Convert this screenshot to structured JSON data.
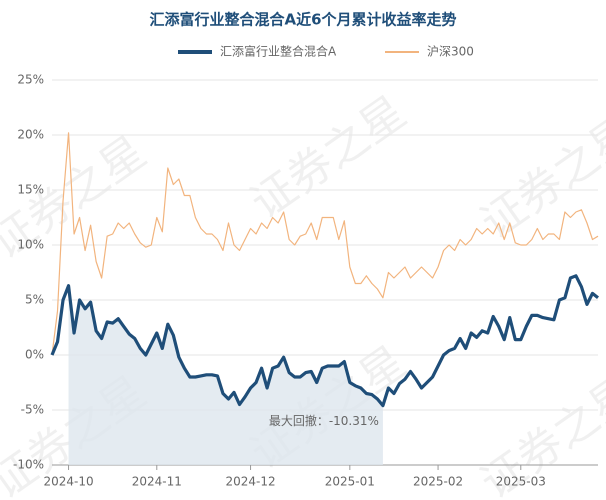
{
  "watermark": "证券之星",
  "chart_data": {
    "type": "line",
    "title": "汇添富行业整合混合A近6个月累计收益率走势",
    "annotation": "最大回撤：-10.31%",
    "categories": [
      null,
      null,
      null,
      "2024-10",
      null,
      null,
      null,
      null,
      null,
      null,
      null,
      null,
      null,
      null,
      null,
      null,
      null,
      null,
      null,
      "2024-11",
      null,
      null,
      null,
      null,
      null,
      null,
      null,
      null,
      null,
      null,
      null,
      null,
      null,
      null,
      null,
      null,
      "2024-12",
      null,
      null,
      null,
      null,
      null,
      null,
      null,
      null,
      null,
      null,
      null,
      null,
      null,
      null,
      null,
      null,
      null,
      "2025-01",
      null,
      null,
      null,
      null,
      null,
      null,
      null,
      null,
      null,
      null,
      null,
      null,
      null,
      null,
      null,
      "2025-02",
      null,
      null,
      null,
      null,
      null,
      null,
      null,
      null,
      null,
      null,
      null,
      null,
      null,
      null,
      "2025-03",
      null,
      null,
      null,
      null,
      null,
      null,
      null,
      null,
      null,
      null,
      null,
      null,
      null,
      null
    ],
    "series": [
      {
        "name": "汇添富行业整合混合A",
        "color": "#1f4e79",
        "width": 3.2,
        "values": [
          0,
          1.2,
          5.0,
          6.3,
          2.0,
          5.0,
          4.2,
          4.8,
          2.2,
          1.5,
          3.0,
          2.9,
          3.3,
          2.6,
          1.9,
          1.5,
          0.6,
          0.0,
          1.0,
          2.0,
          0.6,
          2.8,
          1.8,
          -0.2,
          -1.2,
          -2.0,
          -2.0,
          -1.9,
          -1.8,
          -1.8,
          -1.9,
          -3.5,
          -4.0,
          -3.4,
          -4.5,
          -3.8,
          -3.0,
          -2.5,
          -1.2,
          -3.0,
          -1.2,
          -1.0,
          -0.2,
          -1.6,
          -2.0,
          -2.0,
          -1.6,
          -1.5,
          -2.5,
          -1.2,
          -1.0,
          -1.0,
          -1.0,
          -0.6,
          -2.5,
          -2.8,
          -3.0,
          -3.5,
          -3.6,
          -4.0,
          -4.6,
          -3.0,
          -3.5,
          -2.6,
          -2.2,
          -1.5,
          -2.2,
          -3.0,
          -2.5,
          -2.0,
          -1.0,
          0.0,
          0.4,
          0.6,
          1.5,
          0.6,
          2.0,
          1.6,
          2.2,
          2.0,
          3.5,
          2.6,
          1.4,
          3.4,
          1.4,
          1.4,
          2.6,
          3.6,
          3.6,
          3.4,
          3.3,
          3.2,
          5.0,
          5.2,
          7.0,
          7.2,
          6.2,
          4.6,
          5.6,
          5.2
        ]
      },
      {
        "name": "沪深300",
        "color": "#f2b47e",
        "width": 1.2,
        "values": [
          0,
          4,
          14,
          20.2,
          11,
          12.5,
          9.5,
          11.8,
          8.5,
          7,
          10.8,
          11,
          12,
          11.5,
          12,
          11,
          10.2,
          9.8,
          10,
          12.5,
          11.2,
          17,
          15.5,
          16,
          14.5,
          14.5,
          12.5,
          11.5,
          11,
          11,
          10.5,
          9.5,
          12,
          10,
          9.5,
          10.5,
          11.5,
          11,
          12,
          11.5,
          12.5,
          12,
          13,
          10.5,
          10,
          10.8,
          11,
          12,
          10.5,
          12.5,
          12.5,
          12.5,
          10.5,
          12.2,
          8,
          6.5,
          6.5,
          7.2,
          6.5,
          6,
          5.2,
          7.5,
          7,
          7.5,
          8,
          7,
          7.5,
          8,
          7.5,
          7,
          8,
          9.5,
          10,
          9.5,
          10.5,
          10,
          10.5,
          11.5,
          11,
          11.5,
          11,
          12,
          10.5,
          12,
          10.2,
          10,
          10,
          10.5,
          11.5,
          10.5,
          11,
          11,
          10.5,
          13,
          12.5,
          13,
          13.2,
          12,
          10.5,
          10.8
        ]
      }
    ],
    "ylim": [
      -10,
      25
    ],
    "yticks": [
      {
        "value": -10,
        "label": "-10%"
      },
      {
        "value": -5,
        "label": "-5%"
      },
      {
        "value": 0,
        "label": "0%"
      },
      {
        "value": 5,
        "label": "5%"
      },
      {
        "value": 10,
        "label": "10%"
      },
      {
        "value": 15,
        "label": "15%"
      },
      {
        "value": 20,
        "label": "20%"
      },
      {
        "value": 25,
        "label": "25%"
      }
    ],
    "grid": true
  }
}
